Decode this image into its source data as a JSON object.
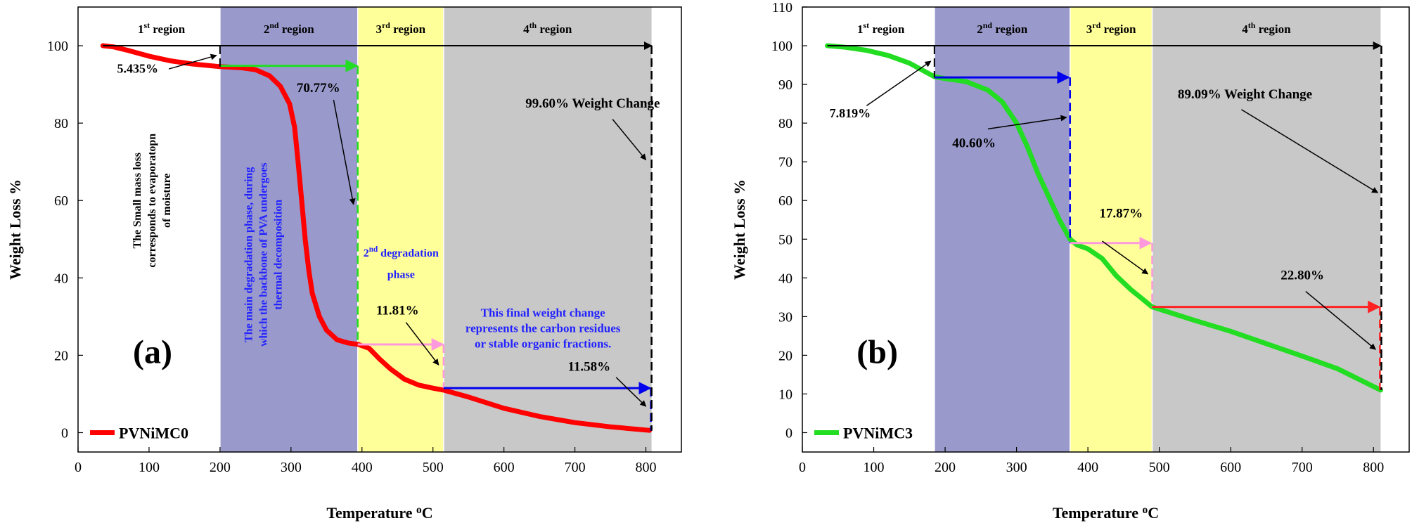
{
  "chart_data": [
    {
      "type": "line",
      "panel_label": "(a)",
      "xlabel": "Temperature ",
      "xlabel_sup": "o",
      "xlabel_unit": "C",
      "ylabel": "Weight Loss %",
      "xlim": [
        0,
        850
      ],
      "ylim": [
        -5,
        110
      ],
      "xticks": [
        0,
        100,
        200,
        300,
        400,
        500,
        600,
        700,
        800
      ],
      "yticks": [
        0,
        20,
        40,
        60,
        80,
        100
      ],
      "series": [
        {
          "name": "PVNiMC0",
          "color": "#ff0000",
          "points": [
            [
              35,
              100
            ],
            [
              50,
              99.7
            ],
            [
              70,
              98.8
            ],
            [
              100,
              97.3
            ],
            [
              130,
              96.1
            ],
            [
              160,
              95.3
            ],
            [
              200,
              94.6
            ],
            [
              230,
              94.3
            ],
            [
              250,
              93.8
            ],
            [
              270,
              92.2
            ],
            [
              285,
              89.5
            ],
            [
              298,
              85
            ],
            [
              305,
              79
            ],
            [
              310,
              70
            ],
            [
              315,
              60
            ],
            [
              320,
              50
            ],
            [
              325,
              42
            ],
            [
              330,
              36
            ],
            [
              340,
              30
            ],
            [
              350,
              26.5
            ],
            [
              365,
              24
            ],
            [
              380,
              23.2
            ],
            [
              395,
              22.8
            ],
            [
              410,
              21.8
            ],
            [
              425,
              19
            ],
            [
              440,
              16.5
            ],
            [
              460,
              13.8
            ],
            [
              480,
              12.3
            ],
            [
              500,
              11.5
            ],
            [
              515,
              11
            ],
            [
              550,
              9.2
            ],
            [
              600,
              6.3
            ],
            [
              650,
              4.2
            ],
            [
              700,
              2.6
            ],
            [
              750,
              1.5
            ],
            [
              805,
              0.6
            ]
          ]
        }
      ],
      "regions": [
        {
          "label": "1",
          "sup": "st",
          "suffix": " region",
          "x0": 35,
          "x1": 200,
          "color": "#ffffff"
        },
        {
          "label": "2",
          "sup": "nd",
          "suffix": " region",
          "x0": 200,
          "x1": 394,
          "color": "#9999cc"
        },
        {
          "label": "3",
          "sup": "rd",
          "suffix": " region",
          "x0": 394,
          "x1": 515,
          "color": "#ffff99"
        },
        {
          "label": "4",
          "sup": "th",
          "suffix": " region",
          "x0": 515,
          "x1": 808,
          "color": "#c8c8c8"
        }
      ],
      "annotations": {
        "pct_region1": "5.435%",
        "pct_region2": "70.77%",
        "pct_region3": "11.81%",
        "pct_region4": "11.58%",
        "total_change": "99.60% Weight Change",
        "note_region1": [
          "The Small mass loss",
          "corresponds to evaporatopn",
          "of moisture"
        ],
        "note_region2": [
          "The main degradation phase, during",
          "which the backbone of PVA undergoes",
          "thermal decomposition"
        ],
        "note_region3_main": "2",
        "note_region3_sup": "nd",
        "note_region3_rest": " degradation",
        "note_region3_line2": "phase",
        "note_region4": [
          "This final weight change",
          "represents the carbon residues",
          "or stable organic fractions."
        ]
      },
      "colors": {
        "arrow_green": "#22dd22",
        "arrow_pink": "#ff99dd",
        "arrow_blue": "#0000ee",
        "text_blue": "#2222ff",
        "arrow_black": "#000000"
      }
    },
    {
      "type": "line",
      "panel_label": "(b)",
      "xlabel": "Temperature ",
      "xlabel_sup": "o",
      "xlabel_unit": "C",
      "ylabel": "Weight Loss %",
      "xlim": [
        0,
        850
      ],
      "ylim": [
        -5,
        110
      ],
      "xticks": [
        0,
        100,
        200,
        300,
        400,
        500,
        600,
        700,
        800
      ],
      "yticks": [
        0,
        10,
        20,
        30,
        40,
        50,
        60,
        70,
        80,
        90,
        100,
        110
      ],
      "series": [
        {
          "name": "PVNiMC3",
          "color": "#22dd22",
          "points": [
            [
              35,
              100
            ],
            [
              60,
              99.6
            ],
            [
              90,
              98.8
            ],
            [
              120,
              97.5
            ],
            [
              150,
              95.5
            ],
            [
              170,
              93.5
            ],
            [
              185,
              92
            ],
            [
              200,
              91.5
            ],
            [
              230,
              90.7
            ],
            [
              260,
              88.5
            ],
            [
              280,
              85.5
            ],
            [
              300,
              80
            ],
            [
              315,
              74
            ],
            [
              330,
              67
            ],
            [
              345,
              61
            ],
            [
              360,
              55
            ],
            [
              375,
              50
            ],
            [
              385,
              48.5
            ],
            [
              400,
              47.5
            ],
            [
              420,
              45
            ],
            [
              440,
              40.5
            ],
            [
              460,
              37
            ],
            [
              480,
              34
            ],
            [
              490,
              32.5
            ],
            [
              550,
              29
            ],
            [
              600,
              26.2
            ],
            [
              650,
              23
            ],
            [
              700,
              19.8
            ],
            [
              750,
              16.5
            ],
            [
              810,
              11
            ]
          ]
        }
      ],
      "regions": [
        {
          "label": "1",
          "sup": "st",
          "suffix": " region",
          "x0": 35,
          "x1": 185,
          "color": "#ffffff"
        },
        {
          "label": "2",
          "sup": "nd",
          "suffix": " region",
          "x0": 185,
          "x1": 375,
          "color": "#9999cc"
        },
        {
          "label": "3",
          "sup": "rd",
          "suffix": " region",
          "x0": 375,
          "x1": 490,
          "color": "#ffff99"
        },
        {
          "label": "4",
          "sup": "th",
          "suffix": " region",
          "x0": 490,
          "x1": 810,
          "color": "#c8c8c8"
        }
      ],
      "annotations": {
        "pct_region1": "7.819%",
        "pct_region2": "40.60%",
        "pct_region3": "17.87%",
        "pct_region4": "22.80%",
        "total_change": "89.09% Weight Change"
      },
      "colors": {
        "arrow_blue": "#0000ee",
        "arrow_pink": "#ff99dd",
        "arrow_red": "#ff2222",
        "arrow_black": "#000000"
      }
    }
  ]
}
